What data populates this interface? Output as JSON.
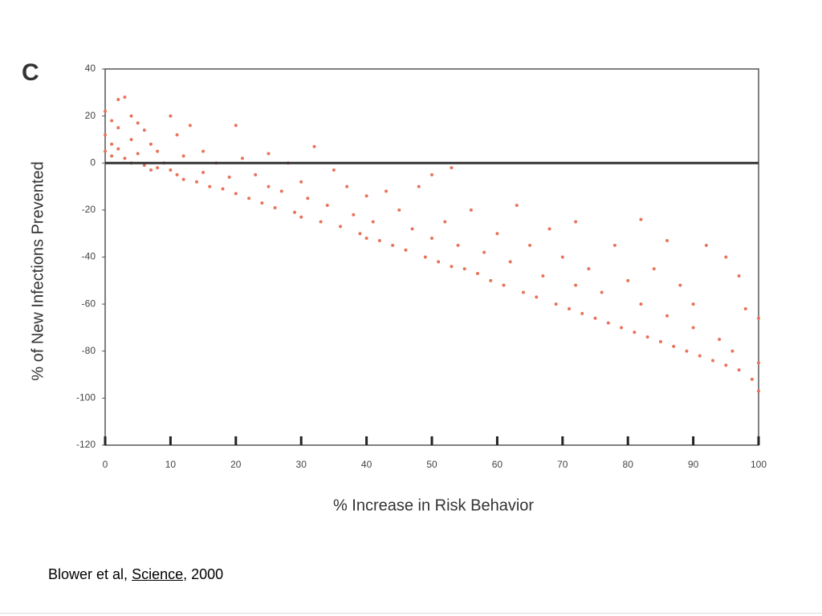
{
  "chart_data": {
    "type": "scatter",
    "panel_label": "C",
    "xlabel": "% Increase in Risk Behavior",
    "ylabel": "% of New Infections Prevented",
    "color": "#e8735a",
    "reference_line": 0,
    "xlim": [
      0,
      100
    ],
    "xticks": [
      0,
      10,
      20,
      30,
      40,
      50,
      60,
      70,
      80,
      90,
      100
    ],
    "ylim": [
      -120,
      40
    ],
    "yticks": [
      40,
      20,
      0,
      -20,
      -40,
      -60,
      -80,
      -100,
      -120
    ],
    "x": [
      0,
      0,
      0,
      1,
      1,
      1,
      2,
      2,
      2,
      3,
      3,
      4,
      4,
      4,
      5,
      5,
      6,
      6,
      7,
      7,
      8,
      8,
      9,
      10,
      10,
      11,
      11,
      12,
      12,
      13,
      14,
      15,
      15,
      16,
      17,
      18,
      19,
      20,
      20,
      21,
      22,
      23,
      24,
      25,
      25,
      26,
      27,
      28,
      29,
      30,
      30,
      31,
      32,
      33,
      34,
      35,
      36,
      37,
      38,
      39,
      40,
      40,
      41,
      42,
      43,
      44,
      45,
      46,
      47,
      48,
      49,
      50,
      50,
      51,
      52,
      53,
      53,
      54,
      55,
      56,
      57,
      58,
      59,
      60,
      61,
      62,
      63,
      64,
      65,
      66,
      67,
      68,
      69,
      70,
      71,
      72,
      72,
      73,
      74,
      75,
      76,
      77,
      78,
      79,
      80,
      81,
      82,
      82,
      83,
      84,
      85,
      86,
      86,
      87,
      88,
      89,
      90,
      90,
      91,
      92,
      93,
      94,
      95,
      95,
      96,
      97,
      97,
      98,
      99,
      100,
      100,
      100
    ],
    "y": [
      22,
      12,
      5,
      8,
      18,
      3,
      27,
      15,
      6,
      28,
      2,
      20,
      10,
      0,
      17,
      4,
      14,
      -1,
      8,
      -3,
      5,
      -2,
      0,
      20,
      -3,
      12,
      -5,
      3,
      -7,
      16,
      -8,
      -4,
      5,
      -10,
      0,
      -11,
      -6,
      16,
      -13,
      2,
      -15,
      -5,
      -17,
      4,
      -10,
      -19,
      -12,
      0,
      -21,
      -8,
      -23,
      -15,
      7,
      -25,
      -18,
      -3,
      -27,
      -10,
      -22,
      -30,
      -14,
      -32,
      -25,
      -33,
      -12,
      -35,
      -20,
      -37,
      -28,
      -10,
      -40,
      -5,
      -32,
      -42,
      -25,
      -2,
      -44,
      -35,
      -45,
      -20,
      -47,
      -38,
      -50,
      -30,
      -52,
      -42,
      -18,
      -55,
      -35,
      -57,
      -48,
      -28,
      -60,
      -40,
      -62,
      -25,
      -52,
      -64,
      -45,
      -66,
      -55,
      -68,
      -35,
      -70,
      -50,
      -72,
      -24,
      -60,
      -74,
      -45,
      -76,
      -33,
      -65,
      -78,
      -52,
      -80,
      -70,
      -60,
      -82,
      -35,
      -84,
      -75,
      -40,
      -86,
      -80,
      -48,
      -88,
      -62,
      -92,
      -97,
      -66,
      -85
    ]
  },
  "caption": {
    "author": "Blower et al,",
    "journal": "Science",
    "year": ", 2000"
  }
}
